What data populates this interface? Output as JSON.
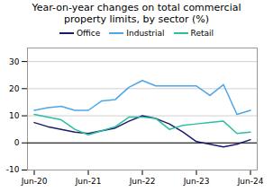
{
  "chart_data": {
    "type": "line",
    "title": "Year-on-year changes on total commercial",
    "subtitle": "property limits, by sector (%)",
    "x": [
      0,
      1,
      2,
      3,
      4,
      5,
      6,
      7,
      8,
      9,
      10,
      11,
      12,
      13,
      14,
      15,
      16
    ],
    "series": [
      {
        "name": "Office",
        "color": "#1a1a6e",
        "values": [
          7.5,
          6.0,
          5.0,
          4.0,
          3.5,
          4.5,
          5.5,
          8.0,
          10.0,
          9.0,
          7.0,
          4.0,
          0.5,
          -0.5,
          -1.5,
          -0.5,
          1.2
        ]
      },
      {
        "name": "Industrial",
        "color": "#4da6e8",
        "values": [
          12.0,
          13.0,
          13.5,
          12.0,
          12.0,
          15.5,
          16.0,
          20.5,
          23.0,
          21.0,
          21.0,
          21.0,
          21.0,
          17.5,
          21.5,
          10.5,
          12.0
        ]
      },
      {
        "name": "Retail",
        "color": "#2abf9e",
        "values": [
          10.5,
          9.5,
          8.5,
          5.0,
          3.0,
          4.5,
          6.0,
          9.5,
          9.5,
          9.0,
          5.0,
          6.5,
          7.0,
          7.5,
          8.0,
          3.5,
          4.0
        ]
      }
    ],
    "xlim": [
      -0.5,
      16.5
    ],
    "xticks": [
      {
        "value": 0,
        "label": "Jun-20"
      },
      {
        "value": 4,
        "label": "Jun-21"
      },
      {
        "value": 8,
        "label": "Jun-22"
      },
      {
        "value": 12,
        "label": "Jun-23"
      },
      {
        "value": 16,
        "label": "Jun-24"
      }
    ],
    "ylim": [
      -10,
      35
    ],
    "yticks": [
      -10,
      0,
      10,
      20,
      30
    ],
    "grid": "y",
    "legend": "top"
  }
}
